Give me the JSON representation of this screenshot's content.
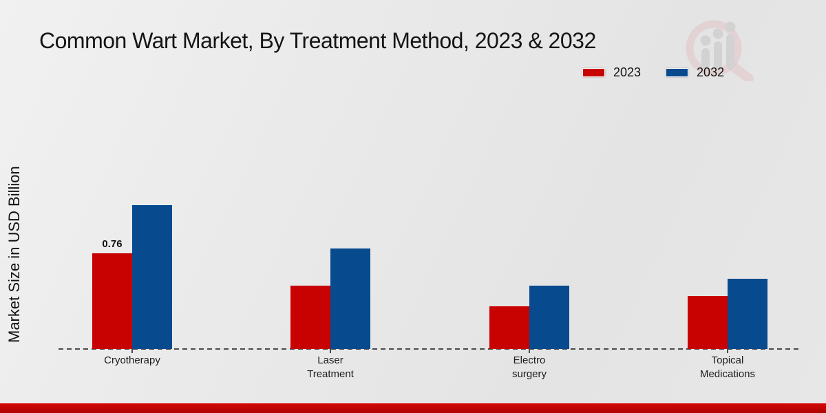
{
  "page": {
    "title": "Common Wart Market, By Treatment Method, 2023 & 2032",
    "footer_color": "#b80404"
  },
  "chart_data": {
    "type": "bar",
    "title": "Common Wart Market, By Treatment Method, 2023 & 2032",
    "categories": [
      "Cryotherapy",
      "Laser Treatment",
      "Electro surgery",
      "Topical Medications"
    ],
    "series": [
      {
        "name": "2023",
        "color": "#c80101",
        "values": [
          0.76,
          0.5,
          0.34,
          0.42
        ]
      },
      {
        "name": "2032",
        "color": "#084a8e",
        "values": [
          1.14,
          0.8,
          0.5,
          0.56
        ]
      }
    ],
    "xlabel": "",
    "ylabel": "Market Size in USD Billion",
    "ylim": [
      0,
      1.25
    ],
    "grid": false,
    "legend_position": "top-right",
    "annotations": [
      {
        "series": "2023",
        "category": "Cryotherapy",
        "text": "0.76"
      }
    ]
  }
}
